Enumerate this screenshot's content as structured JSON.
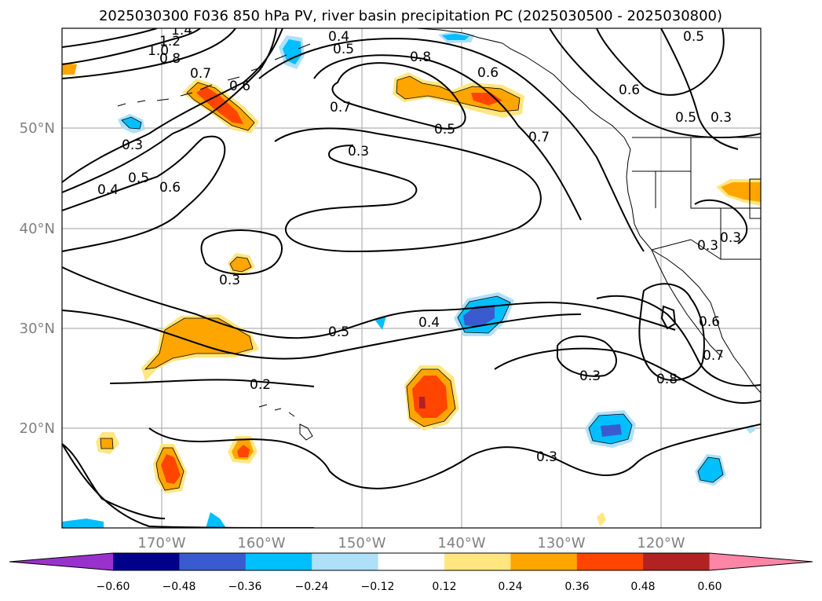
{
  "title": "2025030300 F036 850 hPa PV, river basin precipitation PC (2025030500 - 2025030800)",
  "map": {
    "lon_ticks": [
      "170°W",
      "160°W",
      "150°W",
      "140°W",
      "130°W",
      "120°W"
    ],
    "lat_ticks": [
      "50°N",
      "40°N",
      "30°N",
      "20°N"
    ],
    "extent": {
      "lon_min": -180,
      "lon_max": -110,
      "lat_min": 10,
      "lat_max": 60
    },
    "grid": true,
    "contour_labels": [
      "1.4",
      "1.2",
      "1.0",
      "0.8",
      "0.7",
      "0.6",
      "0.4",
      "0.5",
      "0.8",
      "0.6",
      "0.5",
      "0.6",
      "0.5",
      "0.3",
      "0.7",
      "0.5",
      "0.7",
      "0.3",
      "0.3",
      "0.4",
      "0.5",
      "0.6",
      "0.3",
      "0.5",
      "0.4",
      "0.2",
      "0.3",
      "0.8",
      "0.6",
      "0.3",
      "0.3",
      "0.3",
      "0.7"
    ]
  },
  "colorbar": {
    "ticks": [
      "−0.60",
      "−0.48",
      "−0.36",
      "−0.24",
      "−0.12",
      "0.12",
      "0.24",
      "0.36",
      "0.48",
      "0.60"
    ],
    "colors": [
      "#9932cc",
      "#00008b",
      "#3a5bd0",
      "#00bfff",
      "#aee0f8",
      "#ffffff",
      "#ffe680",
      "#ffa500",
      "#ff4500",
      "#b22222",
      "#ff85a7"
    ]
  }
}
